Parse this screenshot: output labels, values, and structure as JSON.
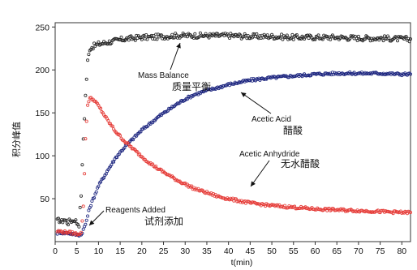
{
  "chart_data": {
    "type": "scatter",
    "xlabel": "t(min)",
    "ylabel": "积分峰值",
    "xlim": [
      0,
      82
    ],
    "ylim": [
      0,
      255
    ],
    "xticks": [
      0,
      5,
      10,
      15,
      20,
      25,
      30,
      35,
      40,
      45,
      50,
      55,
      60,
      65,
      70,
      75,
      80
    ],
    "yticks": [
      50,
      100,
      150,
      200,
      250
    ],
    "grid": false,
    "series": [
      {
        "key": "mass_balance",
        "color": "#222222",
        "marker": "open-circle",
        "points": [
          [
            0.5,
            24
          ],
          [
            1,
            25
          ],
          [
            1.5,
            23
          ],
          [
            2,
            26
          ],
          [
            2.5,
            24
          ],
          [
            3,
            22
          ],
          [
            3.5,
            25
          ],
          [
            4,
            24
          ],
          [
            4.5,
            26
          ],
          [
            5,
            22
          ],
          [
            5.5,
            20
          ],
          [
            6,
            55
          ],
          [
            6.5,
            120
          ],
          [
            7,
            170
          ],
          [
            7.5,
            210
          ],
          [
            8,
            225
          ],
          [
            9,
            228
          ],
          [
            10,
            230
          ],
          [
            12,
            232
          ],
          [
            14,
            234
          ],
          [
            16,
            236
          ],
          [
            18,
            237
          ],
          [
            20,
            238
          ],
          [
            22,
            238
          ],
          [
            25,
            239
          ],
          [
            28,
            240
          ],
          [
            30,
            240
          ],
          [
            35,
            240
          ],
          [
            40,
            240
          ],
          [
            45,
            239
          ],
          [
            50,
            239
          ],
          [
            55,
            238
          ],
          [
            60,
            238
          ],
          [
            65,
            238
          ],
          [
            70,
            237
          ],
          [
            75,
            237
          ],
          [
            80,
            236
          ],
          [
            82,
            236
          ]
        ]
      },
      {
        "key": "acetic_acid",
        "color": "#1a237e",
        "marker": "open-circle",
        "points": [
          [
            0.5,
            10
          ],
          [
            1,
            11
          ],
          [
            2,
            10
          ],
          [
            3,
            10
          ],
          [
            4,
            9
          ],
          [
            5,
            8
          ],
          [
            6,
            8
          ],
          [
            7,
            20
          ],
          [
            8,
            40
          ],
          [
            10,
            65
          ],
          [
            12,
            82
          ],
          [
            14,
            98
          ],
          [
            16,
            110
          ],
          [
            18,
            120
          ],
          [
            20,
            130
          ],
          [
            22,
            138
          ],
          [
            24,
            146
          ],
          [
            26,
            153
          ],
          [
            28,
            160
          ],
          [
            30,
            166
          ],
          [
            32,
            171
          ],
          [
            35,
            176
          ],
          [
            38,
            180
          ],
          [
            40,
            183
          ],
          [
            45,
            188
          ],
          [
            50,
            191
          ],
          [
            55,
            193
          ],
          [
            60,
            195
          ],
          [
            65,
            196
          ],
          [
            70,
            196
          ],
          [
            75,
            196
          ],
          [
            80,
            195
          ],
          [
            82,
            195
          ]
        ]
      },
      {
        "key": "acetic_anhydride",
        "color": "#e53935",
        "marker": "open-circle",
        "points": [
          [
            0.5,
            12
          ],
          [
            1,
            12
          ],
          [
            2,
            11
          ],
          [
            3,
            11
          ],
          [
            4,
            10
          ],
          [
            5,
            9
          ],
          [
            6,
            10
          ],
          [
            6.5,
            40
          ],
          [
            7,
            120
          ],
          [
            7.5,
            160
          ],
          [
            8,
            167
          ],
          [
            9,
            165
          ],
          [
            10,
            158
          ],
          [
            12,
            142
          ],
          [
            14,
            128
          ],
          [
            16,
            117
          ],
          [
            18,
            108
          ],
          [
            20,
            99
          ],
          [
            22,
            91
          ],
          [
            24,
            84
          ],
          [
            26,
            78
          ],
          [
            28,
            72
          ],
          [
            30,
            67
          ],
          [
            32,
            62
          ],
          [
            35,
            57
          ],
          [
            38,
            52
          ],
          [
            40,
            50
          ],
          [
            45,
            45
          ],
          [
            50,
            42
          ],
          [
            55,
            40
          ],
          [
            60,
            38
          ],
          [
            65,
            37
          ],
          [
            70,
            36
          ],
          [
            75,
            35
          ],
          [
            80,
            34
          ],
          [
            82,
            34
          ]
        ]
      }
    ],
    "annotations": [
      {
        "key": "mass_balance",
        "label": "Mass Balance",
        "label_zh": "质量平衡"
      },
      {
        "key": "acetic_acid",
        "label": "Acetic Acid",
        "label_zh": "醋酸"
      },
      {
        "key": "acetic_anhydride",
        "label": "Acetic Anhydride",
        "label_zh": "无水醋酸"
      },
      {
        "key": "reagents_added",
        "label": "Reagents Added",
        "label_zh": "试剂添加"
      }
    ]
  }
}
